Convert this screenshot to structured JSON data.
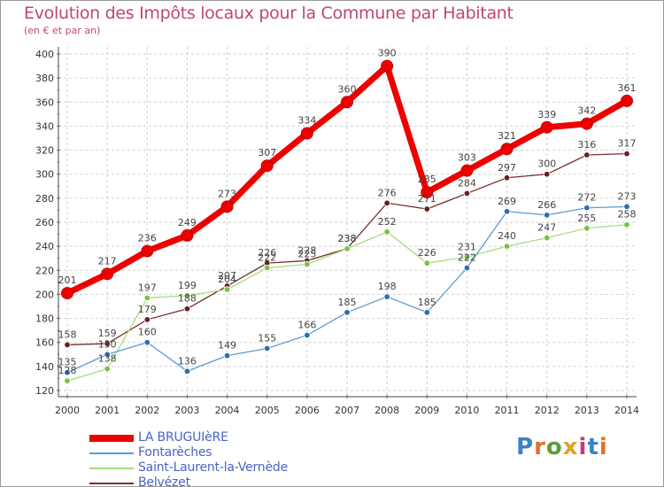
{
  "header": {
    "title": "Evolution des Impôts locaux pour la Commune par Habitant",
    "subtitle": "(en € et par an)"
  },
  "brand": {
    "text": "Proxiti",
    "colors": [
      "#3b82c4",
      "#e0702a",
      "#5a9e3a",
      "#e5a022",
      "#c43b7a",
      "#3b82c4",
      "#e0702a"
    ]
  },
  "chart_data": {
    "type": "line",
    "title": "Evolution des Impôts locaux pour la Commune par Habitant",
    "subtitle": "(en € et par an)",
    "xlabel": "",
    "ylabel": "",
    "x": [
      "2000",
      "2001",
      "2002",
      "2003",
      "2004",
      "2005",
      "2006",
      "2007",
      "2008",
      "2009",
      "2010",
      "2011",
      "2012",
      "2013",
      "2014"
    ],
    "ylim": [
      120,
      400
    ],
    "yticks": [
      "120",
      "140",
      "160",
      "180",
      "200",
      "220",
      "240",
      "260",
      "280",
      "300",
      "320",
      "340",
      "360",
      "380",
      "400"
    ],
    "grid": true,
    "legend_position": "bottom-left",
    "series": [
      {
        "name": "LA BRUGUIèRE",
        "color": "#ee0000",
        "emphasis": true,
        "values": [
          201,
          217,
          236,
          249,
          273,
          307,
          334,
          360,
          390,
          285,
          303,
          321,
          339,
          342,
          361
        ],
        "labels": [
          "201",
          "217",
          "236",
          "249",
          "273",
          "307",
          "334",
          "360",
          "390",
          "285",
          "303",
          "321",
          "339",
          "342",
          "361"
        ]
      },
      {
        "name": "Fontarèches",
        "color": "#5b9bd5",
        "marker_color": "#2e6db4",
        "values": [
          135,
          150,
          160,
          136,
          149,
          155,
          166,
          185,
          198,
          185,
          222,
          269,
          266,
          272,
          273
        ],
        "labels": [
          "135",
          "150",
          "160",
          "136",
          "149",
          "155",
          "166",
          "185",
          "198",
          "185",
          "222",
          "269",
          "266",
          "272",
          "273"
        ]
      },
      {
        "name": "Saint-Laurent-la-Vernède",
        "color": "#a8dc7c",
        "marker_color": "#79c142",
        "values": [
          128,
          138,
          197,
          199,
          204,
          222,
          225,
          238,
          252,
          226,
          231,
          240,
          247,
          255,
          258
        ],
        "labels": [
          "128",
          "138",
          "197",
          "199",
          "204",
          "222",
          "225",
          "238",
          "252",
          "226",
          "231",
          "240",
          "247",
          "255",
          "258"
        ]
      },
      {
        "name": "Belvézet",
        "color": "#7a2e2e",
        "marker_color": "#6a1f1f",
        "values": [
          158,
          159,
          179,
          188,
          207,
          226,
          228,
          238,
          276,
          271,
          284,
          297,
          300,
          316,
          317
        ],
        "labels": [
          "158",
          "159",
          "179",
          "188",
          "207",
          "226",
          "228",
          "238",
          "276",
          "271",
          "284",
          "297",
          "300",
          "316",
          "317"
        ]
      }
    ]
  }
}
